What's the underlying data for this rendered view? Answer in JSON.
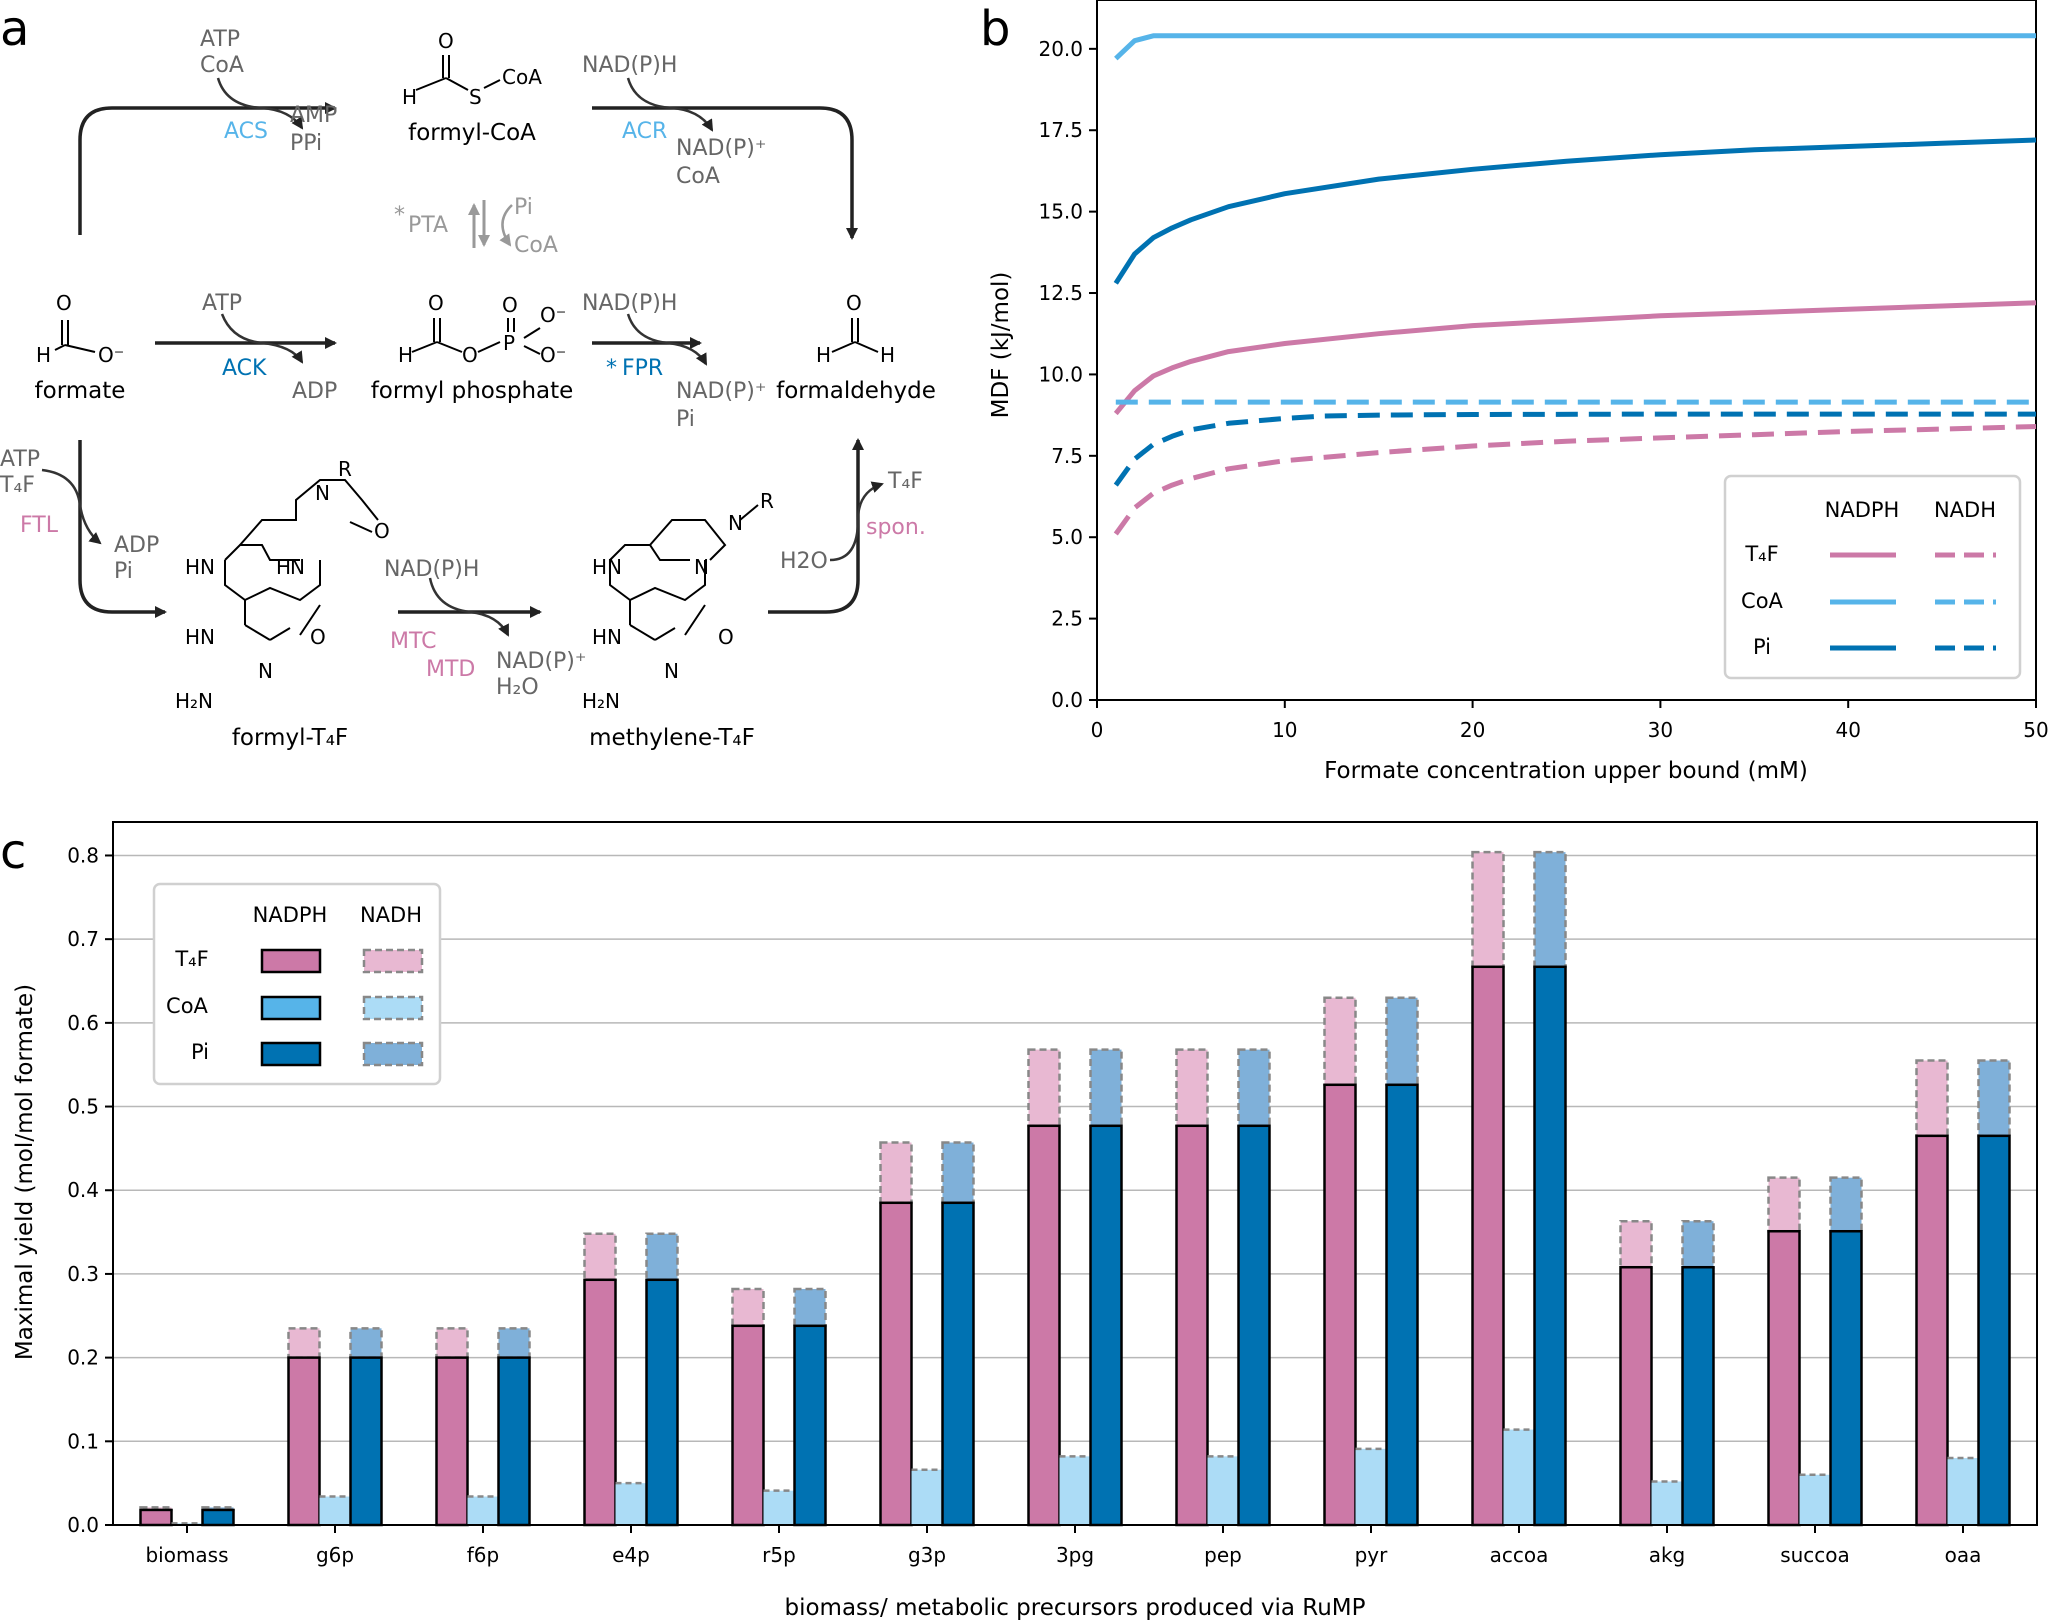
{
  "colors": {
    "t4f": "#cc79a7",
    "t4f_light": "#e8b8d2",
    "coa": "#56b4e9",
    "coa_light": "#acdcf6",
    "pi": "#0072b2",
    "pi_light": "#7fb0d9",
    "gray_text": "#8c8c8c"
  },
  "panels": {
    "a": "a",
    "b": "b",
    "c": "c"
  },
  "pathway": {
    "formate": "formate",
    "formyl_coa": "formyl-CoA",
    "formyl_phosphate": "formyl phosphate",
    "formaldehyde": "formaldehyde",
    "formyl_t4f": "formyl-T₄F",
    "methylene_t4f": "methylene-T₄F",
    "acs": "ACS",
    "acs_in1": "ATP",
    "acs_in2": "CoA",
    "acs_out1": "AMP",
    "acs_out2": "PPi",
    "acr": "ACR",
    "acr_in": "NAD(P)H",
    "acr_out1": "NAD(P)⁺",
    "acr_out2": "CoA",
    "pta": "PTA",
    "pta_star": "*",
    "pta_pi": "Pi",
    "pta_coa": "CoA",
    "ack": "ACK",
    "ack_in": "ATP",
    "ack_out": "ADP",
    "fpr": "FPR",
    "fpr_star": "*",
    "fpr_in": "NAD(P)H",
    "fpr_out1": "NAD(P)⁺",
    "fpr_out2": "Pi",
    "ftl": "FTL",
    "ftl_in1": "ATP",
    "ftl_in2": "T₄F",
    "ftl_out1": "ADP",
    "ftl_out2": "Pi",
    "mtc": "MTC",
    "mtd": "MTD",
    "mtc_in": "NAD(P)H",
    "mtc_out1": "NAD(P)⁺",
    "mtc_out2": "H₂O",
    "spon": "spon.",
    "spon_in": "H2O",
    "spon_out": "T₄F",
    "atoms": {
      "O": "O",
      "H": "H",
      "S": "S",
      "CoA": "CoA",
      "P": "P",
      "Ominus": "O⁻",
      "N": "N",
      "R": "R",
      "HN": "HN",
      "H2N": "H₂N"
    }
  },
  "chart_data": [
    {
      "type": "line",
      "xlabel": "Formate concentration upper bound (mM)",
      "ylabel": "MDF (kJ/mol)",
      "xlim": [
        0,
        50
      ],
      "ylim": [
        0,
        21.5
      ],
      "xticks": [
        0,
        10,
        20,
        30,
        40,
        50
      ],
      "yticks": [
        0.0,
        2.5,
        5.0,
        7.5,
        10.0,
        12.5,
        15.0,
        17.5,
        20.0
      ],
      "grid": false,
      "legend": {
        "placement": "bottom-right",
        "col_headers": [
          "NADPH",
          "NADH"
        ],
        "rows": [
          "T₄F",
          "CoA",
          "Pi"
        ]
      },
      "series": [
        {
          "name": "T₄F NADPH",
          "color": "#cc79a7",
          "dash": false,
          "x": [
            1,
            2,
            3,
            4,
            5,
            7,
            10,
            15,
            20,
            25,
            30,
            35,
            40,
            45,
            50
          ],
          "y": [
            8.8,
            9.5,
            9.95,
            10.2,
            10.4,
            10.7,
            10.95,
            11.25,
            11.5,
            11.65,
            11.8,
            11.9,
            12.0,
            12.1,
            12.2
          ]
        },
        {
          "name": "T₄F NADH",
          "color": "#cc79a7",
          "dash": true,
          "x": [
            1,
            2,
            3,
            4,
            5,
            7,
            10,
            15,
            20,
            25,
            30,
            35,
            40,
            45,
            50
          ],
          "y": [
            5.1,
            5.9,
            6.35,
            6.6,
            6.8,
            7.1,
            7.35,
            7.6,
            7.8,
            7.95,
            8.05,
            8.15,
            8.25,
            8.32,
            8.4
          ]
        },
        {
          "name": "CoA NADPH",
          "color": "#56b4e9",
          "dash": false,
          "x": [
            1,
            2,
            3,
            5,
            10,
            20,
            30,
            40,
            50
          ],
          "y": [
            19.7,
            20.25,
            20.4,
            20.4,
            20.4,
            20.4,
            20.4,
            20.4,
            20.4
          ]
        },
        {
          "name": "CoA NADH",
          "color": "#56b4e9",
          "dash": true,
          "x": [
            1,
            10,
            20,
            30,
            40,
            50
          ],
          "y": [
            9.15,
            9.15,
            9.15,
            9.15,
            9.15,
            9.15
          ]
        },
        {
          "name": "Pi NADPH",
          "color": "#0072b2",
          "dash": false,
          "x": [
            1,
            2,
            3,
            4,
            5,
            7,
            10,
            15,
            20,
            25,
            30,
            35,
            40,
            45,
            50
          ],
          "y": [
            12.8,
            13.7,
            14.2,
            14.5,
            14.75,
            15.15,
            15.55,
            16.0,
            16.3,
            16.55,
            16.75,
            16.9,
            17.0,
            17.1,
            17.2
          ]
        },
        {
          "name": "Pi NADH",
          "color": "#0072b2",
          "dash": true,
          "x": [
            1,
            2,
            3,
            4,
            5,
            7,
            10,
            12,
            15,
            20,
            30,
            40,
            50
          ],
          "y": [
            6.6,
            7.4,
            7.85,
            8.1,
            8.3,
            8.5,
            8.65,
            8.72,
            8.75,
            8.77,
            8.78,
            8.78,
            8.78
          ]
        }
      ]
    },
    {
      "type": "bar",
      "xlabel": "biomass/ metabolic precursors produced via RuMP",
      "ylabel": "Maximal yield (mol/mol formate)",
      "ylim": [
        0,
        0.84
      ],
      "yticks": [
        0.0,
        0.1,
        0.2,
        0.3,
        0.4,
        0.5,
        0.6,
        0.7,
        0.8
      ],
      "grid": true,
      "legend": {
        "placement": "top-left",
        "col_headers": [
          "NADPH",
          "NADH"
        ],
        "rows": [
          "T₄F",
          "CoA",
          "Pi"
        ]
      },
      "categories": [
        "biomass",
        "g6p",
        "f6p",
        "e4p",
        "r5p",
        "g3p",
        "3pg",
        "pep",
        "pyr",
        "accoa",
        "akg",
        "succoa",
        "oaa"
      ],
      "series": [
        {
          "name": "T₄F NADPH",
          "values": [
            0.018,
            0.2,
            0.2,
            0.293,
            0.238,
            0.385,
            0.477,
            0.477,
            0.526,
            0.667,
            0.308,
            0.351,
            0.465
          ]
        },
        {
          "name": "T₄F NADH",
          "values": [
            0.021,
            0.235,
            0.235,
            0.348,
            0.282,
            0.457,
            0.568,
            0.568,
            0.63,
            0.804,
            0.363,
            0.415,
            0.555
          ]
        },
        {
          "name": "CoA NADPH",
          "values": [
            0.001,
            0.03,
            0.03,
            0.045,
            0.037,
            0.06,
            0.078,
            0.078,
            0.087,
            0.11,
            0.048,
            0.055,
            0.075
          ]
        },
        {
          "name": "CoA NADH",
          "values": [
            0.002,
            0.034,
            0.034,
            0.05,
            0.041,
            0.066,
            0.082,
            0.082,
            0.091,
            0.114,
            0.052,
            0.06,
            0.08
          ]
        },
        {
          "name": "Pi NADPH",
          "values": [
            0.018,
            0.2,
            0.2,
            0.293,
            0.238,
            0.385,
            0.477,
            0.477,
            0.526,
            0.667,
            0.308,
            0.351,
            0.465
          ]
        },
        {
          "name": "Pi NADH",
          "values": [
            0.021,
            0.235,
            0.235,
            0.348,
            0.282,
            0.457,
            0.568,
            0.568,
            0.63,
            0.804,
            0.363,
            0.415,
            0.555
          ]
        }
      ]
    }
  ]
}
